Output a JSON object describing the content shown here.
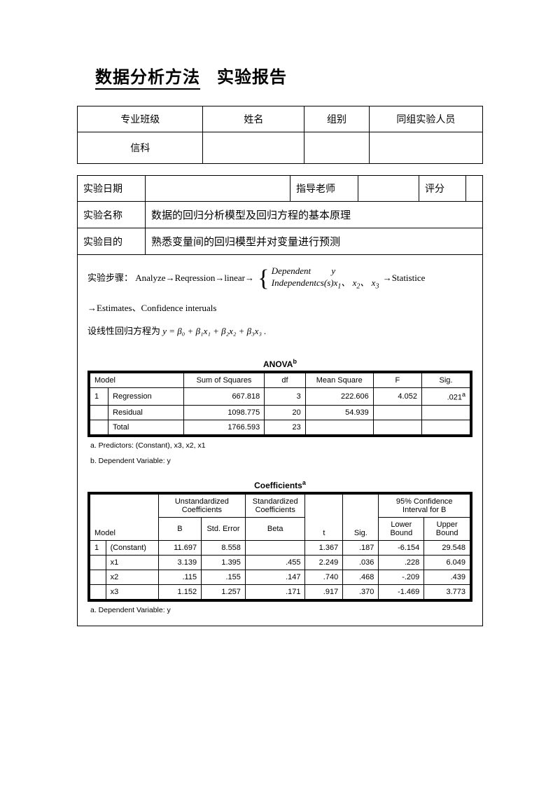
{
  "title": {
    "underlined": "数据分析方法",
    "rest": "实验报告"
  },
  "info_header": {
    "c1": "专业班级",
    "c2": "姓名",
    "c3": "组别",
    "c4": "同组实验人员"
  },
  "info_row2": {
    "c1": "信科",
    "c2": "",
    "c3": "",
    "c4": ""
  },
  "info2": {
    "r1": {
      "l1": "实验日期",
      "v1": "",
      "l2": "指导老师",
      "v2": "",
      "l3": "评分",
      "v3": ""
    },
    "r2": {
      "l": "实验名称",
      "v": "数据的回归分析模型及回归方程的基本原理"
    },
    "r3": {
      "l": "实验目的",
      "v": "熟悉变量间的回归模型并对变量进行预测"
    }
  },
  "steps": {
    "label": "实验步骤：",
    "p1": "Analyze→Reqression→linear→",
    "brace_top": "Dependent   y",
    "brace_bottom_pre": "Independentcs(s)x",
    "brace_bottom_subs": {
      "a": "1",
      "sep1": "、",
      "b": "x",
      "bs": "2",
      "sep2": "、",
      "c": "x",
      "cs": "3"
    },
    "p2": "→Statistice",
    "line2": "→Estimates、Confidence interuals"
  },
  "eq": {
    "pre": "设线性回归方程为 ",
    "formula": "y = β₀ + β₁x₁ + β₂x₂ + β₃x₃ ."
  },
  "anova": {
    "title": "ANOVA",
    "title_sup": "b",
    "headers": {
      "h1": "Model",
      "h2": "Sum of Squares",
      "h3": "df",
      "h4": "Mean Square",
      "h5": "F",
      "h6": "Sig."
    },
    "rows": [
      {
        "idx": "1",
        "name": "Regression",
        "ss": "667.818",
        "df": "3",
        "ms": "222.606",
        "f": "4.052",
        "sig": ".021",
        "sig_sup": "a"
      },
      {
        "idx": "",
        "name": "Residual",
        "ss": "1098.775",
        "df": "20",
        "ms": "54.939",
        "f": "",
        "sig": ""
      },
      {
        "idx": "",
        "name": "Total",
        "ss": "1766.593",
        "df": "23",
        "ms": "",
        "f": "",
        "sig": ""
      }
    ],
    "note_a": "a. Predictors: (Constant), x3, x2, x1",
    "note_b": "b. Dependent Variable: y"
  },
  "coef": {
    "title": "Coefficients",
    "title_sup": "a",
    "group_headers": {
      "g2": "Unstandardized Coefficients",
      "g3": "Standardized Coefficients",
      "g6": "95% Confidence Interval for B"
    },
    "sub_headers": {
      "h1": "Model",
      "h2": "B",
      "h3": "Std. Error",
      "h4": "Beta",
      "h5": "t",
      "h6": "Sig.",
      "h7": "Lower Bound",
      "h8": "Upper Bound"
    },
    "rows": [
      {
        "idx": "1",
        "name": "(Constant)",
        "b": "11.697",
        "se": "8.558",
        "beta": "",
        "t": "1.367",
        "sig": ".187",
        "lo": "-6.154",
        "hi": "29.548"
      },
      {
        "idx": "",
        "name": "x1",
        "b": "3.139",
        "se": "1.395",
        "beta": ".455",
        "t": "2.249",
        "sig": ".036",
        "lo": ".228",
        "hi": "6.049"
      },
      {
        "idx": "",
        "name": "x2",
        "b": ".115",
        "se": ".155",
        "beta": ".147",
        "t": ".740",
        "sig": ".468",
        "lo": "-.209",
        "hi": ".439"
      },
      {
        "idx": "",
        "name": "x3",
        "b": "1.152",
        "se": "1.257",
        "beta": ".171",
        "t": ".917",
        "sig": ".370",
        "lo": "-1.469",
        "hi": "3.773"
      }
    ],
    "note_a": "a. Dependent Variable: y"
  }
}
